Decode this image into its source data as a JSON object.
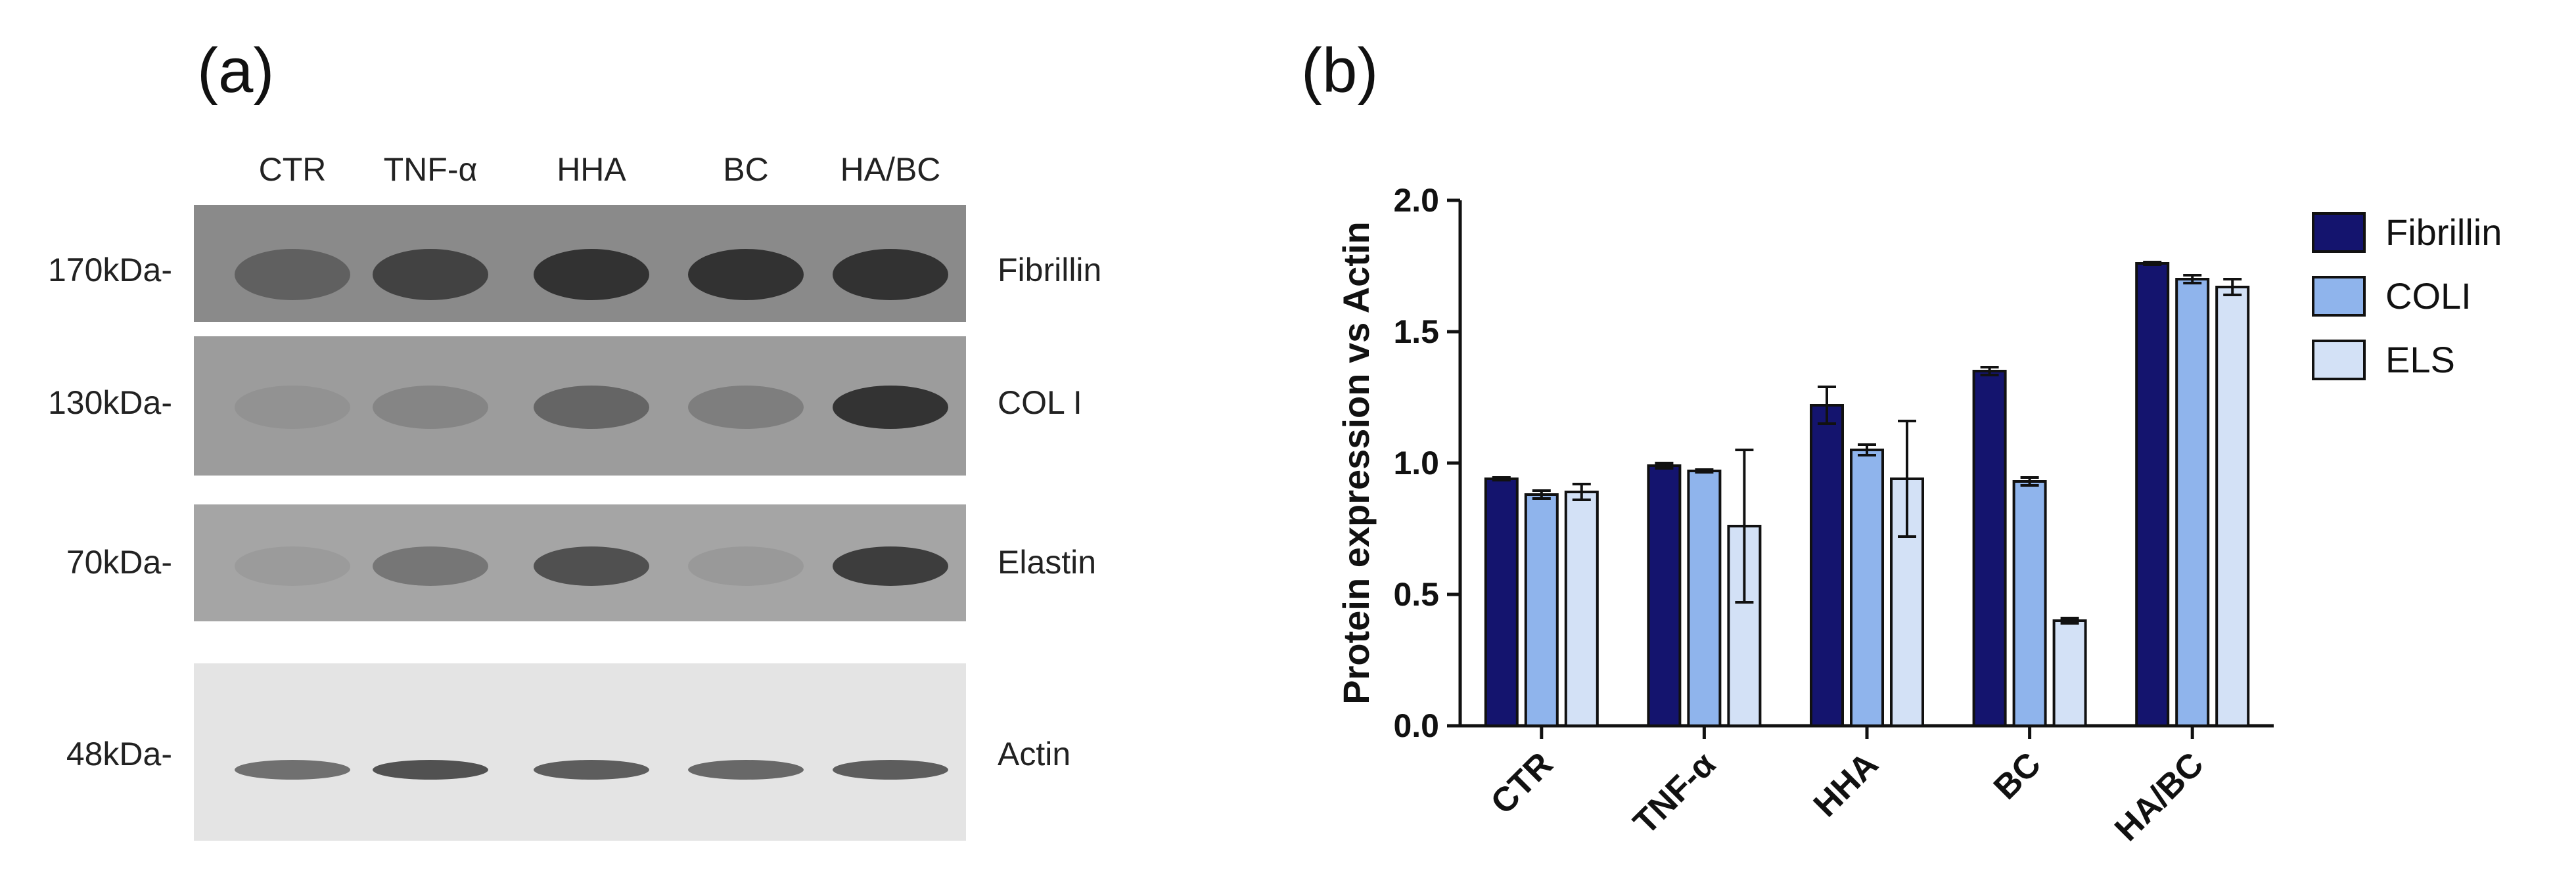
{
  "panel_a": {
    "label": "(a)",
    "lanes": [
      "CTR",
      "TNF-α",
      "HHA",
      "BC",
      "HA/BC"
    ],
    "blots": [
      {
        "marker": "170kDa-",
        "protein": "Fibrillin",
        "intensity": [
          0.55,
          0.75,
          0.85,
          0.85,
          0.85
        ]
      },
      {
        "marker": "130kDa-",
        "protein": "COL I",
        "intensity": [
          0.12,
          0.28,
          0.55,
          0.35,
          0.85
        ]
      },
      {
        "marker": "70kDa-",
        "protein": "Elastin",
        "intensity": [
          0.08,
          0.45,
          0.7,
          0.1,
          0.8
        ]
      },
      {
        "marker": "48kDa-",
        "protein": "Actin",
        "intensity": [
          0.6,
          0.75,
          0.7,
          0.65,
          0.7
        ]
      }
    ]
  },
  "panel_b": {
    "label": "(b)",
    "chart_data": {
      "type": "bar",
      "categories": [
        "CTR",
        "TNF-α",
        "HHA",
        "BC",
        "HA/BC"
      ],
      "series": [
        {
          "name": "Fibrillin",
          "color": "#14146e",
          "values": [
            0.94,
            0.99,
            1.22,
            1.35,
            1.76
          ],
          "errors": [
            0.005,
            0.01,
            0.07,
            0.015,
            0.005
          ]
        },
        {
          "name": "COLI",
          "color": "#8fb4ec",
          "values": [
            0.88,
            0.97,
            1.05,
            0.93,
            1.7
          ],
          "errors": [
            0.015,
            0.005,
            0.02,
            0.015,
            0.015
          ]
        },
        {
          "name": "ELS",
          "color": "#d3e1f6",
          "values": [
            0.89,
            0.76,
            0.94,
            0.4,
            1.67
          ],
          "errors": [
            0.03,
            0.29,
            0.22,
            0.01,
            0.03
          ]
        }
      ],
      "ylabel": "Protein expression vs Actin",
      "xlabel": "",
      "ylim": [
        0.0,
        2.0
      ],
      "yticks": [
        "0.0",
        "0.5",
        "1.0",
        "1.5",
        "2.0"
      ],
      "legend": "right"
    }
  }
}
